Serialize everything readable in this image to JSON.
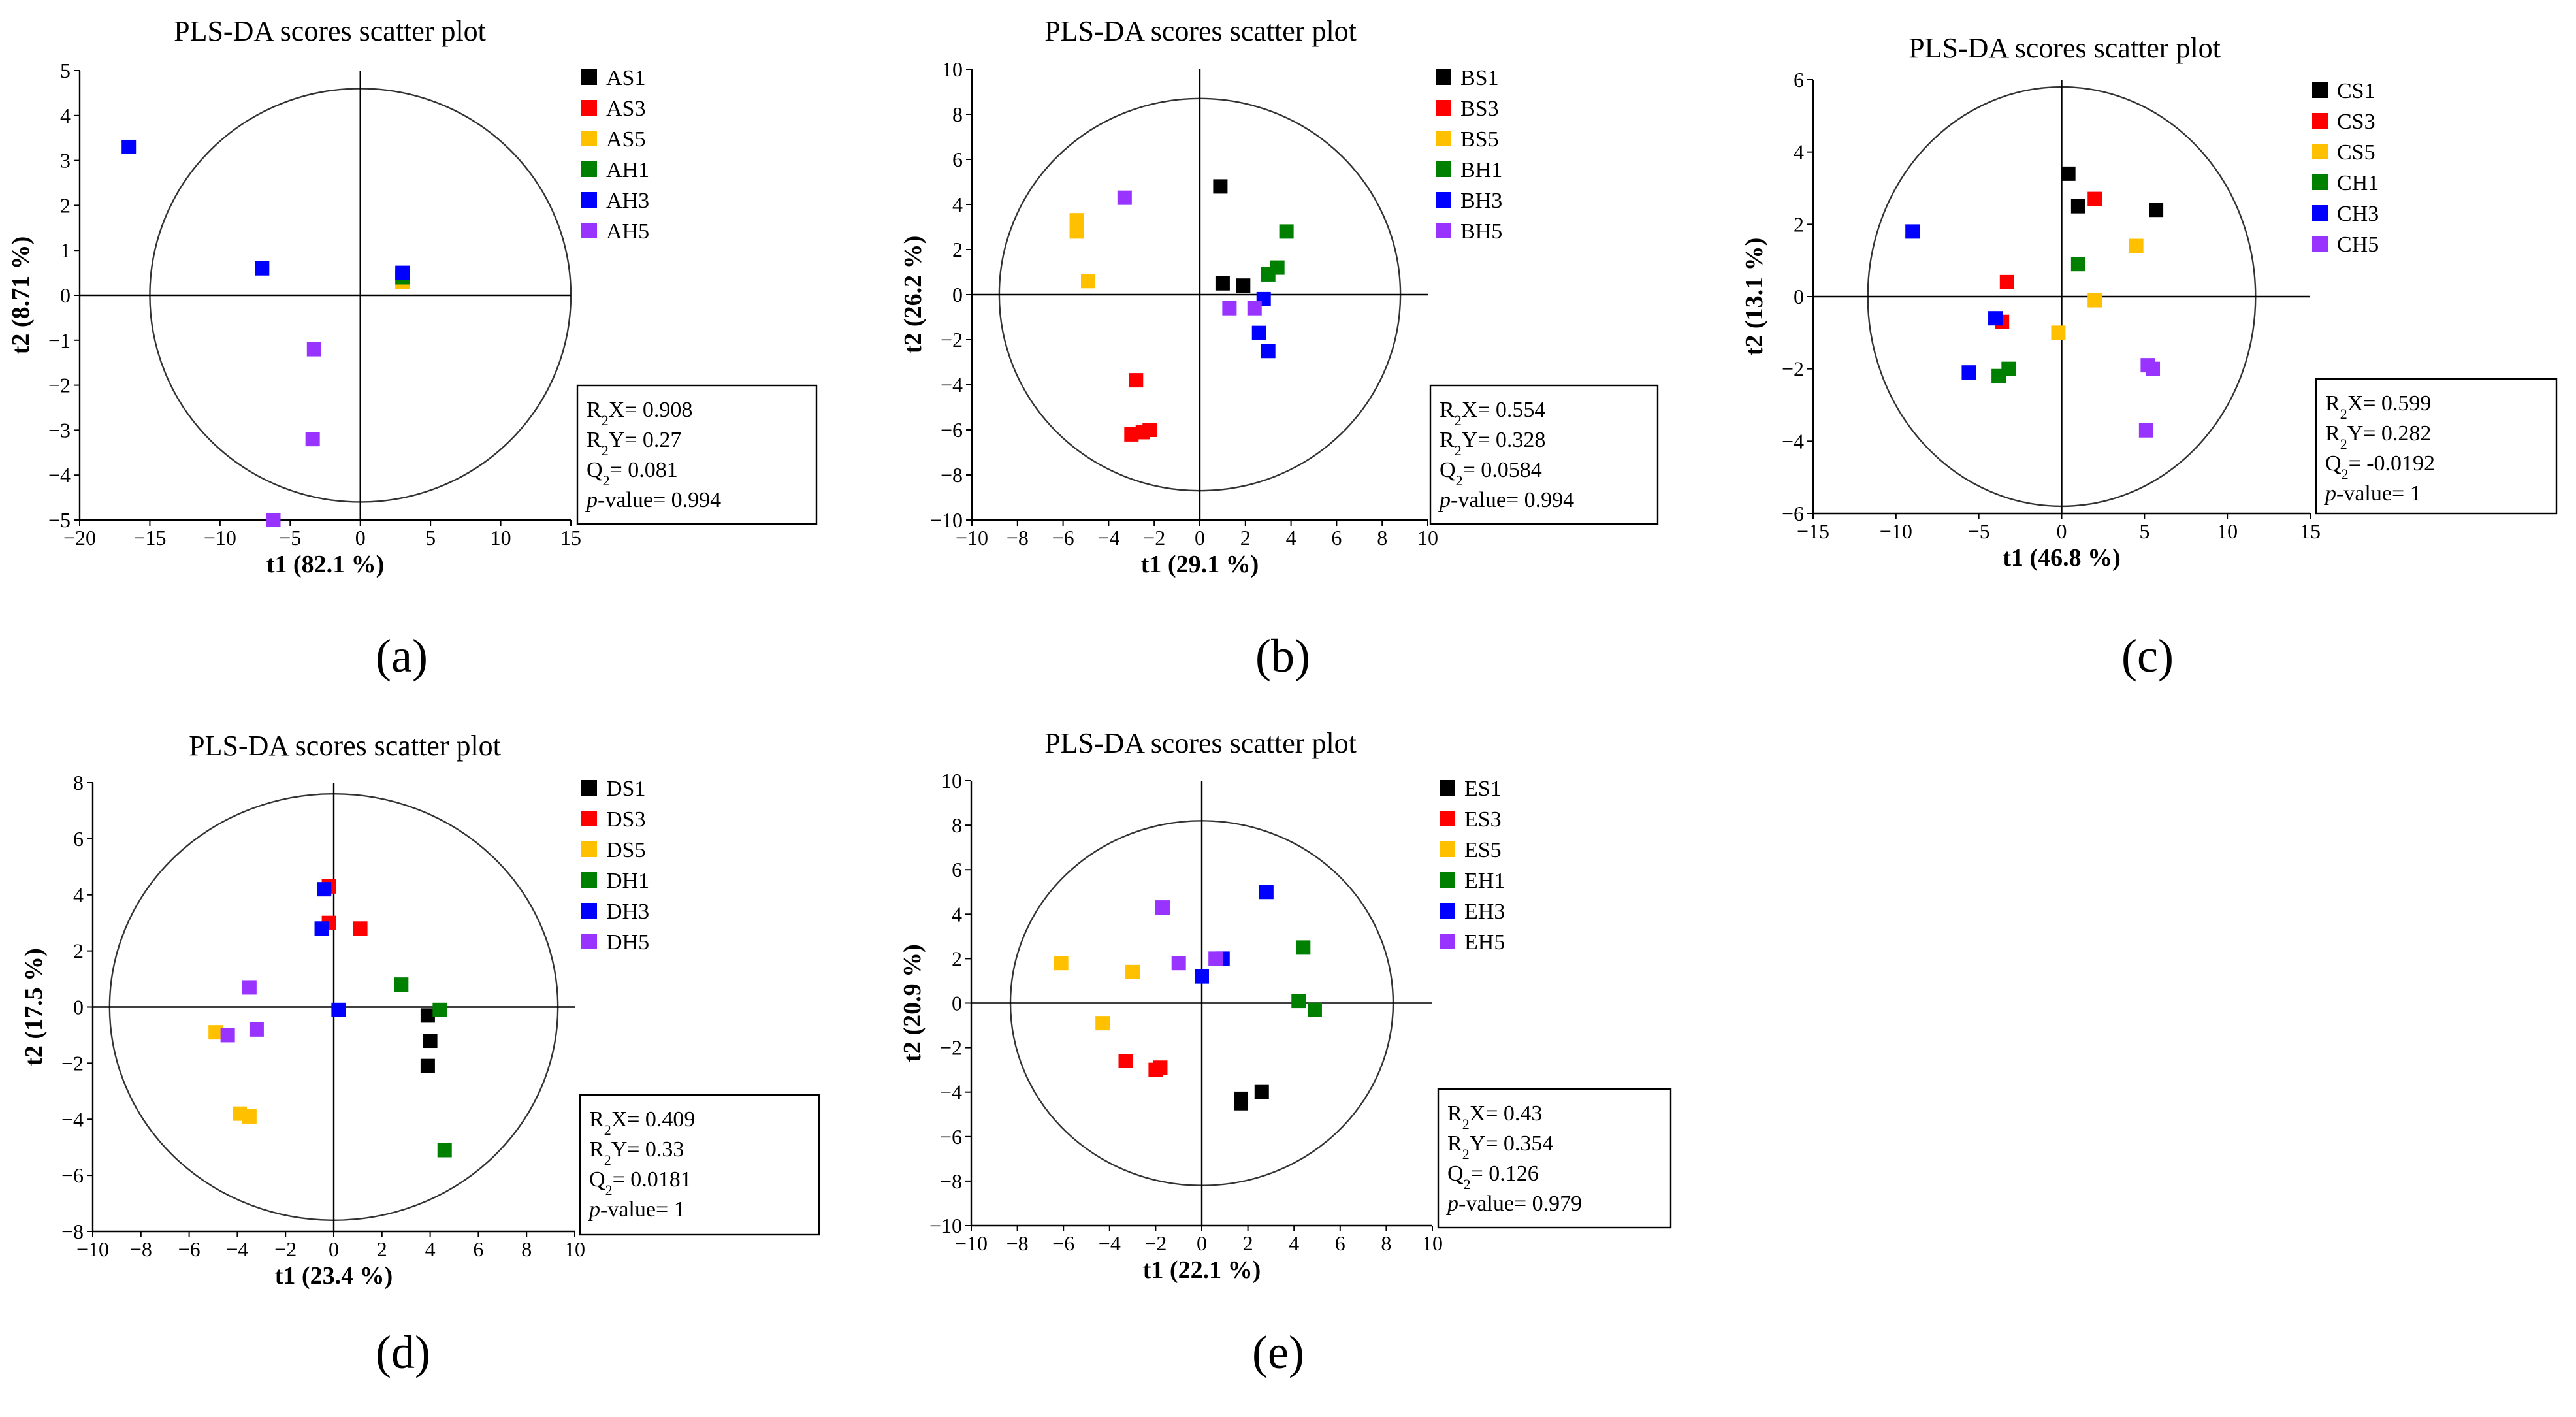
{
  "figure": {
    "panels": [
      "a",
      "b",
      "c",
      "d",
      "e"
    ]
  },
  "colors": {
    "S1": "#000000",
    "S3": "#ff0000",
    "S5": "#ffc000",
    "H1": "#008000",
    "H3": "#0000ff",
    "H5": "#9933ff"
  },
  "chart_data": [
    {
      "type": "scatter",
      "panel_label": "(a)",
      "title": "PLS-DA scores scatter plot",
      "xlabel": "t1 (82.1 %)",
      "ylabel": "t2 (8.71 %)",
      "xlim": [
        -20,
        15
      ],
      "ylim": [
        -5,
        5
      ],
      "xticks": [
        -20,
        -15,
        -10,
        -5,
        0,
        5,
        10,
        15
      ],
      "yticks": [
        -5,
        -4,
        -3,
        -2,
        -1,
        0,
        1,
        2,
        3,
        4,
        5
      ],
      "ellipse": {
        "rx": 15,
        "ry": 4.6
      },
      "stats": {
        "r2x": "0.908",
        "r2y": "0.27",
        "q2": "0.081",
        "pvalue": "0.994"
      },
      "series": [
        {
          "name": "AS1",
          "key": "S1",
          "points": []
        },
        {
          "name": "AS3",
          "key": "S3",
          "points": []
        },
        {
          "name": "AS5",
          "key": "S5",
          "points": [
            [
              3,
              0.3
            ]
          ]
        },
        {
          "name": "AH1",
          "key": "H1",
          "points": [
            [
              3,
              0.4
            ]
          ]
        },
        {
          "name": "AH3",
          "key": "H3",
          "points": [
            [
              -16.5,
              3.3
            ],
            [
              -7,
              0.6
            ],
            [
              3,
              0.5
            ]
          ]
        },
        {
          "name": "AH5",
          "key": "H5",
          "points": [
            [
              -3.3,
              -1.2
            ],
            [
              -3.4,
              -3.2
            ],
            [
              -6.2,
              -5.0
            ]
          ]
        }
      ]
    },
    {
      "type": "scatter",
      "panel_label": "(b)",
      "title": "PLS-DA scores scatter plot",
      "xlabel": "t1 (29.1 %)",
      "ylabel": "t2 (26.2 %)",
      "xlim": [
        -10,
        10
      ],
      "ylim": [
        -10,
        10
      ],
      "xticks": [
        -10,
        -8,
        -6,
        -4,
        -2,
        0,
        2,
        4,
        6,
        8,
        10
      ],
      "yticks": [
        -10,
        -8,
        -6,
        -4,
        -2,
        0,
        2,
        4,
        6,
        8,
        10
      ],
      "ellipse": {
        "rx": 8.8,
        "ry": 8.7
      },
      "stats": {
        "r2x": "0.554",
        "r2y": "0.328",
        "q2": "0.0584",
        "pvalue": "0.994"
      },
      "series": [
        {
          "name": "BS1",
          "key": "S1",
          "points": [
            [
              0.9,
              4.8
            ],
            [
              1,
              0.5
            ],
            [
              1.9,
              0.4
            ]
          ]
        },
        {
          "name": "BS3",
          "key": "S3",
          "points": [
            [
              -2.8,
              -3.8
            ],
            [
              -3,
              -6.2
            ],
            [
              -2.5,
              -6.1
            ],
            [
              -2.2,
              -6.0
            ]
          ]
        },
        {
          "name": "BS5",
          "key": "S5",
          "points": [
            [
              -5.4,
              3.3
            ],
            [
              -5.4,
              2.8
            ],
            [
              -4.9,
              0.6
            ]
          ]
        },
        {
          "name": "BH1",
          "key": "H1",
          "points": [
            [
              3.8,
              2.8
            ],
            [
              3.4,
              1.2
            ],
            [
              3,
              0.9
            ]
          ]
        },
        {
          "name": "BH3",
          "key": "H3",
          "points": [
            [
              2.8,
              -0.2
            ],
            [
              2.6,
              -1.7
            ],
            [
              3,
              -2.5
            ]
          ]
        },
        {
          "name": "BH5",
          "key": "H5",
          "points": [
            [
              -3.3,
              4.3
            ],
            [
              1.3,
              -0.6
            ],
            [
              2.4,
              -0.6
            ]
          ]
        }
      ]
    },
    {
      "type": "scatter",
      "panel_label": "(c)",
      "title": "PLS-DA scores scatter plot",
      "xlabel": "t1 (46.8 %)",
      "ylabel": "t2 (13.1 %)",
      "xlim": [
        -15,
        15
      ],
      "ylim": [
        -6,
        6
      ],
      "xticks": [
        -15,
        -10,
        -5,
        0,
        5,
        10,
        15
      ],
      "yticks": [
        -6,
        -4,
        -2,
        0,
        2,
        4,
        6
      ],
      "ellipse": {
        "rx": 11.7,
        "ry": 5.8
      },
      "stats": {
        "r2x": "0.599",
        "r2y": "0.282",
        "q2": "-0.0192",
        "pvalue": "1"
      },
      "series": [
        {
          "name": "CS1",
          "key": "S1",
          "points": [
            [
              0.4,
              3.4
            ],
            [
              1,
              2.5
            ],
            [
              5.7,
              2.4
            ]
          ]
        },
        {
          "name": "CS3",
          "key": "S3",
          "points": [
            [
              2,
              2.7
            ],
            [
              -3.3,
              0.4
            ],
            [
              -3.6,
              -0.7
            ]
          ]
        },
        {
          "name": "CS5",
          "key": "S5",
          "points": [
            [
              4.5,
              1.4
            ],
            [
              2,
              -0.1
            ],
            [
              -0.2,
              -1.0
            ]
          ]
        },
        {
          "name": "CH1",
          "key": "H1",
          "points": [
            [
              1,
              0.9
            ],
            [
              -3.2,
              -2.0
            ],
            [
              -3.8,
              -2.2
            ]
          ]
        },
        {
          "name": "CH3",
          "key": "H3",
          "points": [
            [
              -9,
              1.8
            ],
            [
              -4,
              -0.6
            ],
            [
              -5.6,
              -2.1
            ]
          ]
        },
        {
          "name": "CH5",
          "key": "H5",
          "points": [
            [
              5.2,
              -1.9
            ],
            [
              5.5,
              -2.0
            ],
            [
              5.1,
              -3.7
            ]
          ]
        }
      ]
    },
    {
      "type": "scatter",
      "panel_label": "(d)",
      "title": "PLS-DA scores scatter plot",
      "xlabel": "t1 (23.4 %)",
      "ylabel": "t2 (17.5 %)",
      "xlim": [
        -10,
        10
      ],
      "ylim": [
        -8,
        8
      ],
      "xticks": [
        -10,
        -8,
        -6,
        -4,
        -2,
        0,
        2,
        4,
        6,
        8,
        10
      ],
      "yticks": [
        -8,
        -6,
        -4,
        -2,
        0,
        2,
        4,
        6,
        8
      ],
      "ellipse": {
        "rx": 9.3,
        "ry": 7.6
      },
      "stats": {
        "r2x": "0.409",
        "r2y": "0.33",
        "q2": "0.0181",
        "pvalue": "1"
      },
      "series": [
        {
          "name": "DS1",
          "key": "S1",
          "points": [
            [
              3.9,
              -0.3
            ],
            [
              4,
              -1.2
            ],
            [
              3.9,
              -2.1
            ]
          ]
        },
        {
          "name": "DS3",
          "key": "S3",
          "points": [
            [
              -0.2,
              4.3
            ],
            [
              -0.2,
              3.0
            ],
            [
              1.1,
              2.8
            ]
          ]
        },
        {
          "name": "DS5",
          "key": "S5",
          "points": [
            [
              -4.9,
              -0.9
            ],
            [
              -3.9,
              -3.8
            ],
            [
              -3.5,
              -3.9
            ]
          ]
        },
        {
          "name": "DH1",
          "key": "H1",
          "points": [
            [
              2.8,
              0.8
            ],
            [
              4.4,
              -0.1
            ],
            [
              4.6,
              -5.1
            ]
          ]
        },
        {
          "name": "DH3",
          "key": "H3",
          "points": [
            [
              -0.4,
              4.2
            ],
            [
              -0.5,
              2.8
            ],
            [
              0.2,
              -0.1
            ]
          ]
        },
        {
          "name": "DH5",
          "key": "H5",
          "points": [
            [
              -3.5,
              0.7
            ],
            [
              -4.4,
              -1.0
            ],
            [
              -3.2,
              -0.8
            ]
          ]
        }
      ]
    },
    {
      "type": "scatter",
      "panel_label": "(e)",
      "title": "PLS-DA scores scatter plot",
      "xlabel": "t1 (22.1 %)",
      "ylabel": "t2 (20.9 %)",
      "xlim": [
        -10,
        10
      ],
      "ylim": [
        -10,
        10
      ],
      "xticks": [
        -10,
        -8,
        -6,
        -4,
        -2,
        0,
        2,
        4,
        6,
        8,
        10
      ],
      "yticks": [
        -10,
        -8,
        -6,
        -4,
        -2,
        0,
        2,
        4,
        6,
        8,
        10
      ],
      "ellipse": {
        "rx": 8.3,
        "ry": 8.2
      },
      "stats": {
        "r2x": "0.43",
        "r2y": "0.354",
        "q2": "0.126",
        "pvalue": "0.979"
      },
      "series": [
        {
          "name": "ES1",
          "key": "S1",
          "points": [
            [
              1.7,
              -4.3
            ],
            [
              1.7,
              -4.5
            ],
            [
              2.6,
              -4.0
            ]
          ]
        },
        {
          "name": "ES3",
          "key": "S3",
          "points": [
            [
              -3.3,
              -2.6
            ],
            [
              -1.8,
              -2.9
            ],
            [
              -2.0,
              -3.0
            ]
          ]
        },
        {
          "name": "ES5",
          "key": "S5",
          "points": [
            [
              -6.1,
              1.8
            ],
            [
              -3.0,
              1.4
            ],
            [
              -4.3,
              -0.9
            ]
          ]
        },
        {
          "name": "EH1",
          "key": "H1",
          "points": [
            [
              4.4,
              2.5
            ],
            [
              4.2,
              0.1
            ],
            [
              4.9,
              -0.3
            ]
          ]
        },
        {
          "name": "EH3",
          "key": "H3",
          "points": [
            [
              2.8,
              5.0
            ],
            [
              0.9,
              2.0
            ],
            [
              0,
              1.2
            ]
          ]
        },
        {
          "name": "EH5",
          "key": "H5",
          "points": [
            [
              -1.7,
              4.3
            ],
            [
              -1.0,
              1.8
            ],
            [
              0.6,
              2.0
            ]
          ]
        }
      ]
    }
  ]
}
